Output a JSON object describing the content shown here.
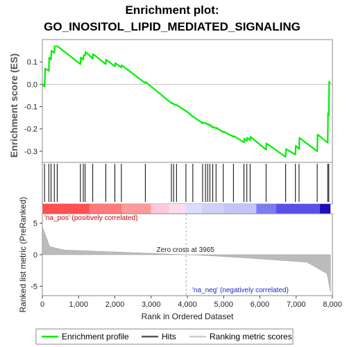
{
  "chart_data": {
    "type": "line",
    "title_line1": "Enrichment plot:",
    "title_line2": "GO_INOSITOL_LIPID_MEDIATED_SIGNALING",
    "ylabel_top": "Enrichment score (ES)",
    "ylabel_bottom": "Ranked list metric (PreRanked)",
    "xlabel": "Rank in Ordered Dataset",
    "xlim": [
      0,
      8000
    ],
    "x_ticks": [
      "0",
      "1,000",
      "2,000",
      "3,000",
      "4,000",
      "5,000",
      "6,000",
      "7,000",
      "8,000"
    ],
    "x_tick_values": [
      0,
      1000,
      2000,
      3000,
      4000,
      5000,
      6000,
      7000,
      8000
    ],
    "es_ylim": [
      -0.35,
      0.2
    ],
    "es_ticks": [
      "0.1",
      "0.0",
      "-0.1",
      "-0.2",
      "-0.3"
    ],
    "es_tick_values": [
      0.1,
      0.0,
      -0.1,
      -0.2,
      -0.3
    ],
    "metric_ylim": [
      -6.5,
      6.5
    ],
    "metric_ticks": [
      "5",
      "0",
      "-5"
    ],
    "metric_tick_values": [
      5,
      0,
      -5
    ],
    "n_genes": 7947,
    "zero_cross": 3965,
    "zero_cross_label": "Zero cross at 3965",
    "pos_label": "'na_pos' (positively correlated)",
    "neg_label": "'na_neg' (negatively correlated)",
    "series": [
      {
        "name": "Enrichment profile",
        "color": "#00ee00",
        "x": [
          0,
          60,
          80,
          180,
          190,
          240,
          250,
          330,
          340,
          410,
          420,
          1050,
          1060,
          1130,
          1140,
          1180,
          1190,
          1390,
          1400,
          1750,
          1760,
          2000,
          2010,
          2180,
          2190,
          2840,
          2850,
          3560,
          3570,
          3620,
          3630,
          3700,
          3710,
          3960,
          3970,
          4150,
          4160,
          4420,
          4430,
          4500,
          4510,
          4560,
          4570,
          4620,
          4630,
          4700,
          4710,
          4790,
          4800,
          4990,
          5000,
          5270,
          5280,
          5560,
          5570,
          5640,
          5650,
          5730,
          5740,
          6170,
          6180,
          6710,
          6720,
          6980,
          6990,
          7080,
          7090,
          7580,
          7590,
          7870,
          7880,
          7900,
          7910,
          7947
        ],
        "y": [
          0.0,
          -0.01,
          0.07,
          0.06,
          0.12,
          0.11,
          0.15,
          0.14,
          0.17,
          0.17,
          0.17,
          0.09,
          0.12,
          0.11,
          0.13,
          0.13,
          0.145,
          0.115,
          0.135,
          0.09,
          0.11,
          0.08,
          0.095,
          0.075,
          0.085,
          0.005,
          0.01,
          -0.085,
          -0.083,
          -0.09,
          -0.088,
          -0.095,
          -0.093,
          -0.12,
          -0.12,
          -0.145,
          -0.145,
          -0.175,
          -0.17,
          -0.176,
          -0.174,
          -0.18,
          -0.178,
          -0.185,
          -0.182,
          -0.195,
          -0.19,
          -0.198,
          -0.195,
          -0.215,
          -0.212,
          -0.235,
          -0.232,
          -0.26,
          -0.243,
          -0.255,
          -0.24,
          -0.25,
          -0.235,
          -0.293,
          -0.265,
          -0.325,
          -0.29,
          -0.315,
          -0.275,
          -0.29,
          -0.24,
          -0.3,
          -0.225,
          -0.262,
          -0.13,
          -0.14,
          0.01,
          0.005
        ]
      },
      {
        "name": "Hits",
        "color": "#000000",
        "x": [
          60,
          180,
          240,
          330,
          410,
          1050,
          1130,
          1180,
          1390,
          1750,
          2000,
          2180,
          2840,
          3560,
          3620,
          3700,
          3960,
          4150,
          4420,
          4500,
          4560,
          4620,
          4700,
          4790,
          4990,
          5270,
          5560,
          5640,
          5730,
          6170,
          6710,
          6980,
          7080,
          7580,
          7870,
          7900
        ]
      },
      {
        "name": "Ranking metric scores",
        "color": "#bbbbbb"
      }
    ]
  }
}
